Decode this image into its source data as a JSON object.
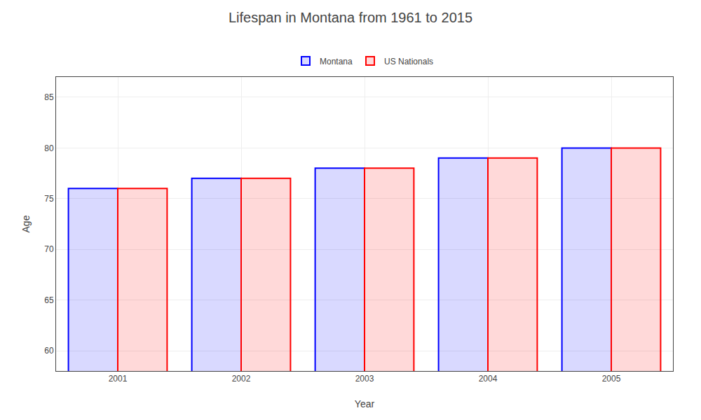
{
  "chart_data": {
    "type": "bar",
    "title": "Lifespan in Montana from 1961 to 2015",
    "x_label": "Year",
    "y_label": "Age",
    "categories": [
      "2001",
      "2002",
      "2003",
      "2004",
      "2005"
    ],
    "series": [
      {
        "name": "Montana",
        "color": "#0000ff",
        "values": [
          76.0,
          77.0,
          78.0,
          79.0,
          80.0
        ]
      },
      {
        "name": "US Nationals",
        "color": "#ff0000",
        "values": [
          76.0,
          77.0,
          78.0,
          79.0,
          80.0
        ]
      }
    ],
    "ylim": [
      58,
      87
    ],
    "yticks": [
      60,
      65,
      70,
      75,
      80,
      85
    ],
    "grid": true,
    "legend": "top"
  }
}
